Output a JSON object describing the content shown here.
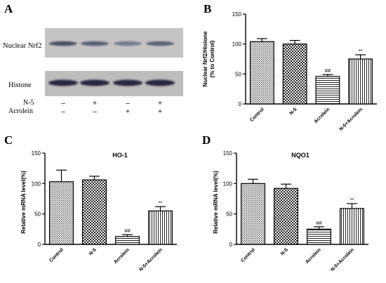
{
  "panels": {
    "a": "A",
    "b": "B",
    "c": "C",
    "d": "D"
  },
  "blot": {
    "row_labels": [
      "Nuclear Nrf2",
      "Histone"
    ],
    "treatments": [
      {
        "name": "N-5",
        "signs": [
          "–",
          "+",
          "–",
          "+"
        ]
      },
      {
        "name": "Acrolein",
        "signs": [
          "–",
          "–",
          "+",
          "+"
        ]
      }
    ],
    "nrf2_intensity": [
      0.72,
      0.62,
      0.42,
      0.6
    ],
    "histone_intensity": [
      0.9,
      0.9,
      0.9,
      0.9
    ]
  },
  "chart_data": [
    {
      "panel": "B",
      "type": "bar",
      "title": "",
      "ylabel_lines": [
        "Nuclear Nrf2/Histone",
        "(% to Control)"
      ],
      "categories": [
        "Control",
        "N-5",
        "Acrolein",
        "N-5+Acrolein"
      ],
      "values": [
        104,
        100,
        46,
        75
      ],
      "errors": [
        5,
        6,
        3,
        7
      ],
      "significance": [
        "",
        "",
        "##",
        "**"
      ],
      "patterns": [
        "pat-grid",
        "pat-check",
        "pat-hline",
        "pat-vline"
      ],
      "ylim": [
        0,
        150
      ],
      "yticks": [
        0,
        50,
        100,
        150
      ]
    },
    {
      "panel": "C",
      "type": "bar",
      "title": "HO-1",
      "ylabel_lines": [
        "Relative mRNA level(%)"
      ],
      "categories": [
        "Control",
        "N-5",
        "Acrolein",
        "N-5+Acrolein"
      ],
      "values": [
        103,
        106,
        13,
        55
      ],
      "errors": [
        19,
        6,
        3,
        7
      ],
      "significance": [
        "",
        "",
        "##",
        "**"
      ],
      "patterns": [
        "pat-grid",
        "pat-check",
        "pat-hline",
        "pat-vline"
      ],
      "ylim": [
        0,
        150
      ],
      "yticks": [
        0,
        50,
        100,
        150
      ]
    },
    {
      "panel": "D",
      "type": "bar",
      "title": "NQO1",
      "ylabel_lines": [
        "Relative mRNA level(%)"
      ],
      "categories": [
        "Control",
        "N-5",
        "Acrolein",
        "N-5+Acrolein"
      ],
      "values": [
        100,
        92,
        25,
        59
      ],
      "errors": [
        7,
        7,
        4,
        8
      ],
      "significance": [
        "",
        "",
        "##",
        "**"
      ],
      "patterns": [
        "pat-grid",
        "pat-check",
        "pat-hline",
        "pat-vline"
      ],
      "ylim": [
        0,
        150
      ],
      "yticks": [
        0,
        50,
        100,
        150
      ]
    }
  ]
}
